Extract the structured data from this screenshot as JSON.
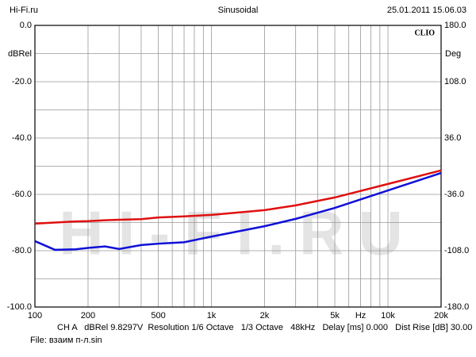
{
  "chart_data": {
    "type": "line",
    "header_left": "Hi-Fi.ru",
    "title": "Sinusoidal",
    "header_right": "25.01.2011 15.06.03",
    "brand": "CLIO",
    "watermark": "HI-FI.RU",
    "ylabel": "dBRel",
    "y2label": "Deg",
    "footer": "CH A   dBRel 9.8297V  Resolution 1/6 Octave   1/3 Octave   48kHz   Delay [ms] 0.000   Dist Rise [dB] 30.00",
    "file": "File: взаим п-л.sin",
    "xscale": "log",
    "xlim": [
      100,
      20000
    ],
    "xticks": [
      100,
      200,
      500,
      {
        "value": 1000,
        "label": "1k"
      },
      {
        "value": 2000,
        "label": "2k"
      },
      {
        "value": 5000,
        "label": "5k"
      },
      {
        "value": 7000,
        "label": "Hz"
      },
      {
        "value": 10000,
        "label": "10k"
      },
      {
        "value": 20000,
        "label": "20k"
      }
    ],
    "xgrid": [
      200,
      300,
      400,
      500,
      600,
      700,
      800,
      900,
      1000,
      2000,
      3000,
      4000,
      5000,
      6000,
      7000,
      8000,
      9000,
      10000
    ],
    "ylim": [
      -100,
      0
    ],
    "yticks": [
      {
        "value": 0,
        "label": "0.0"
      },
      {
        "value": -20,
        "label": "-20.0"
      },
      {
        "value": -40,
        "label": "-40.0"
      },
      {
        "value": -60,
        "label": "-60.0"
      },
      {
        "value": -80,
        "label": "-80.0"
      },
      {
        "value": -100,
        "label": "-100.0"
      }
    ],
    "ygrid": [
      -10,
      -20,
      -30,
      -40,
      -50,
      -60,
      -70,
      -80,
      -90
    ],
    "y2lim": [
      -180,
      180
    ],
    "y2ticks": [
      {
        "value": 180,
        "label": "180.0"
      },
      {
        "value": 108,
        "label": "108.0"
      },
      {
        "value": 36,
        "label": "36.0"
      },
      {
        "value": -36,
        "label": "-36.0"
      },
      {
        "value": -108,
        "label": "-108.0"
      },
      {
        "value": -180,
        "label": "-180.0"
      }
    ],
    "x": [
      100,
      130,
      170,
      200,
      250,
      300,
      400,
      500,
      700,
      1000,
      2000,
      3000,
      5000,
      10000,
      20000
    ],
    "series": [
      {
        "name": "red",
        "color": "#e01010",
        "values": [
          -70.4,
          -70,
          -69.6,
          -69.5,
          -69.2,
          -69,
          -68.8,
          -68.2,
          -67.8,
          -67.3,
          -65.6,
          -63.9,
          -61.1,
          -56.3,
          -51.5
        ]
      },
      {
        "name": "blue",
        "color": "#1010d8",
        "values": [
          -76.6,
          -79.7,
          -79.5,
          -79,
          -78.5,
          -79.4,
          -78,
          -77.5,
          -77,
          -75,
          -71.3,
          -68.7,
          -64.8,
          -58.6,
          -52.4
        ]
      }
    ]
  }
}
